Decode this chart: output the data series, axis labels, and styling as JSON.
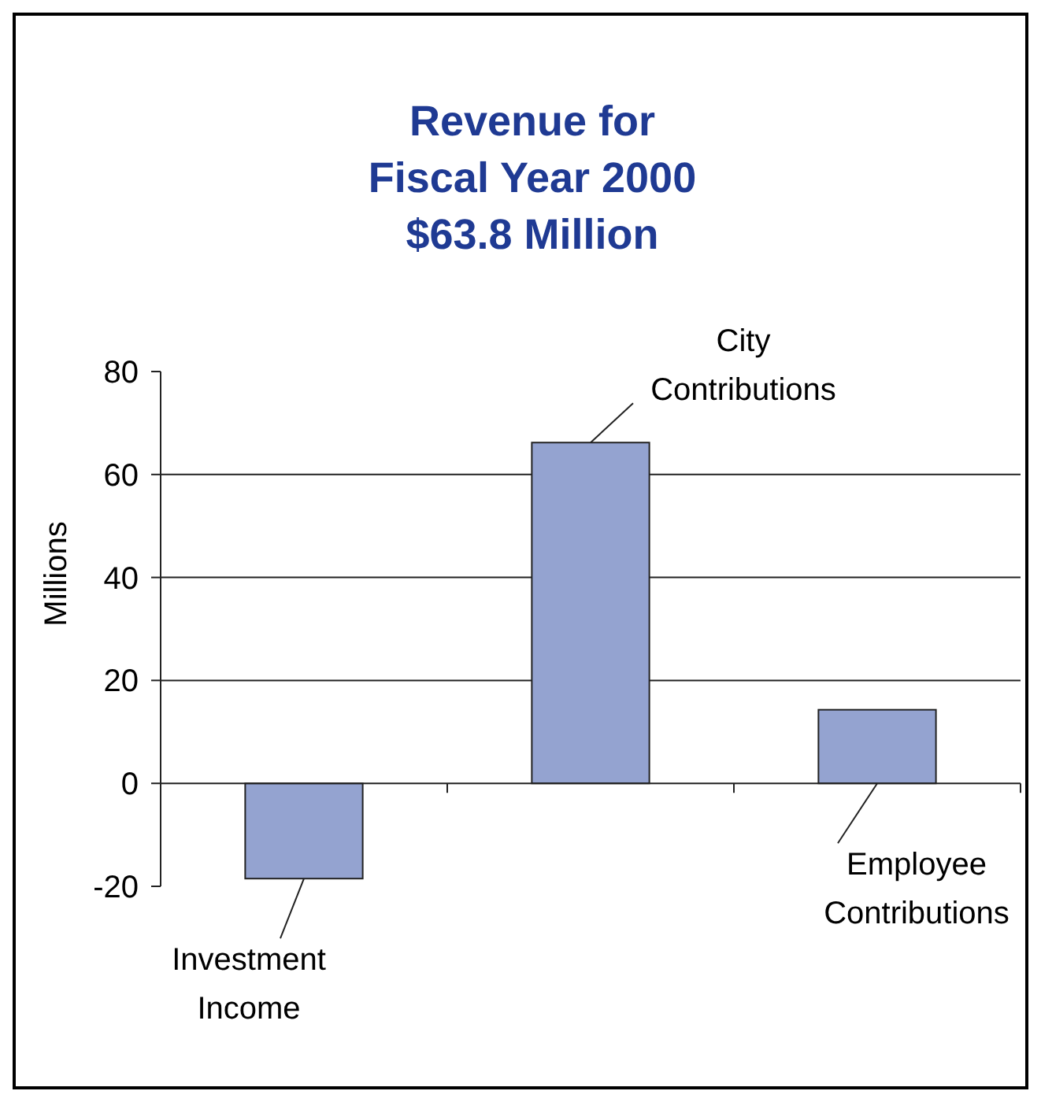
{
  "chart_data": {
    "type": "bar",
    "title": "Revenue for\nFiscal Year 2000\n$63.8 Million",
    "ylabel": "Millions",
    "categories": [
      null,
      null,
      null
    ],
    "values": [
      -18.5,
      66.2,
      14.3
    ],
    "annotations": [
      "Investment Income",
      "City Contributions",
      "Employee Contributions"
    ],
    "color": "#94a3d0",
    "ylim": [
      -20,
      80
    ],
    "yticks": [
      -20,
      0,
      20,
      40,
      60,
      80
    ],
    "grid": "y"
  }
}
